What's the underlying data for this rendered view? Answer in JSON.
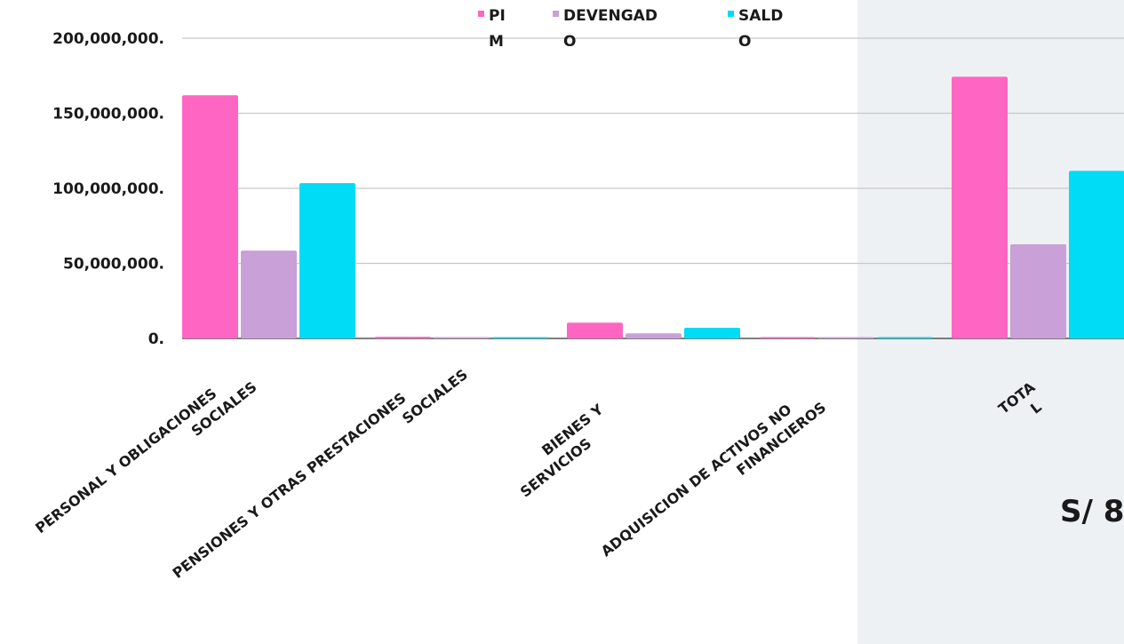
{
  "chart_data": {
    "type": "bar",
    "categories": [
      [
        "PERSONAL Y OBLIGACIONES",
        "SOCIALES"
      ],
      [
        "PENSIONES Y OTRAS PRESTACIONES",
        "SOCIALES"
      ],
      [
        "BIENES Y",
        "SERVICIOS"
      ],
      [
        "ADQUISICION DE ACTIVOS NO",
        "FINANCIEROS"
      ],
      [
        "TOTA",
        "L"
      ]
    ],
    "series": [
      {
        "name": [
          "PI",
          "M"
        ],
        "color": "#ff66c4",
        "values": [
          162000000,
          1100000,
          10500000,
          700000,
          174300000
        ]
      },
      {
        "name": [
          "DEVENGAD",
          "O"
        ],
        "color": "#c9a0d8",
        "values": [
          58500000,
          600000,
          3400000,
          200000,
          62700000
        ]
      },
      {
        "name": [
          "SALD",
          "O"
        ],
        "color": "#00dcf5",
        "values": [
          103500000,
          500000,
          7100000,
          500000,
          111600000
        ]
      }
    ],
    "ytick_labels": [
      "0.",
      "50,000,000.",
      "100,000,000.",
      "150,000,000.",
      "200,000,000."
    ],
    "yticks": [
      0,
      50000000,
      100000000,
      150000000,
      200000000
    ],
    "ylim": [
      0,
      200000000
    ],
    "grid": true,
    "legend_position": "top"
  },
  "total_amount": "S/  8"
}
